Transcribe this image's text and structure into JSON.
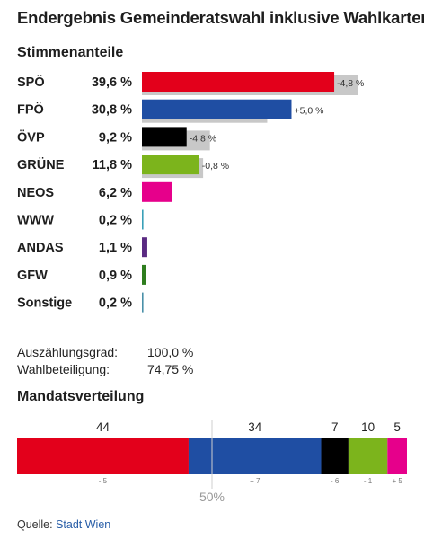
{
  "title": "Endergebnis Gemeinderatswahl inklusive Wahlkarten",
  "subtitle": "Stimmenanteile",
  "stats": [
    {
      "label": "Auszählungsgrad:",
      "value": "100,0 %"
    },
    {
      "label": "Wahlbeteiligung:",
      "value": "74,75 %"
    }
  ],
  "mandate_title": "Mandatsverteilung",
  "majority_label": "50%",
  "source": {
    "prefix": "Quelle: ",
    "link": "Stadt Wien"
  },
  "chart_data": [
    {
      "type": "bar",
      "orientation": "horizontal",
      "title": "Stimmenanteile",
      "categories": [
        "SPÖ",
        "FPÖ",
        "ÖVP",
        "GRÜNE",
        "NEOS",
        "WWW",
        "ANDAS",
        "GFW",
        "Sonstige"
      ],
      "values": [
        39.6,
        30.8,
        9.2,
        11.8,
        6.2,
        0.2,
        1.1,
        0.9,
        0.2
      ],
      "value_labels": [
        "39,6 %",
        "30,8 %",
        "9,2 %",
        "11,8 %",
        "6,2 %",
        "0,2 %",
        "1,1 %",
        "0,9 %",
        "0,2 %"
      ],
      "previous_values": [
        44.4,
        25.8,
        14.0,
        12.6,
        null,
        null,
        null,
        null,
        null
      ],
      "change_labels": [
        "-4,8 %",
        "+5,0 %",
        "-4,8 %",
        "-0,8 %",
        "",
        "",
        "",
        "",
        ""
      ],
      "colors": [
        "#e3001b",
        "#1f4ea3",
        "#000000",
        "#7cb41c",
        "#e6008b",
        "#3aa0b8",
        "#5a2a82",
        "#2e7d1e",
        "#4a90a8"
      ],
      "previous_color": "#c8c8c8",
      "xlim": [
        0,
        44.4
      ]
    },
    {
      "type": "bar",
      "orientation": "stacked-horizontal",
      "title": "Mandatsverteilung",
      "categories": [
        "SPÖ",
        "FPÖ",
        "ÖVP",
        "GRÜNE",
        "NEOS"
      ],
      "values": [
        44,
        34,
        7,
        10,
        5
      ],
      "changes": [
        "- 5",
        "+ 7",
        "- 6",
        "- 1",
        "+ 5"
      ],
      "colors": [
        "#e3001b",
        "#1f4ea3",
        "#000000",
        "#7cb41c",
        "#e6008b"
      ],
      "total": 100,
      "majority": 50
    }
  ]
}
